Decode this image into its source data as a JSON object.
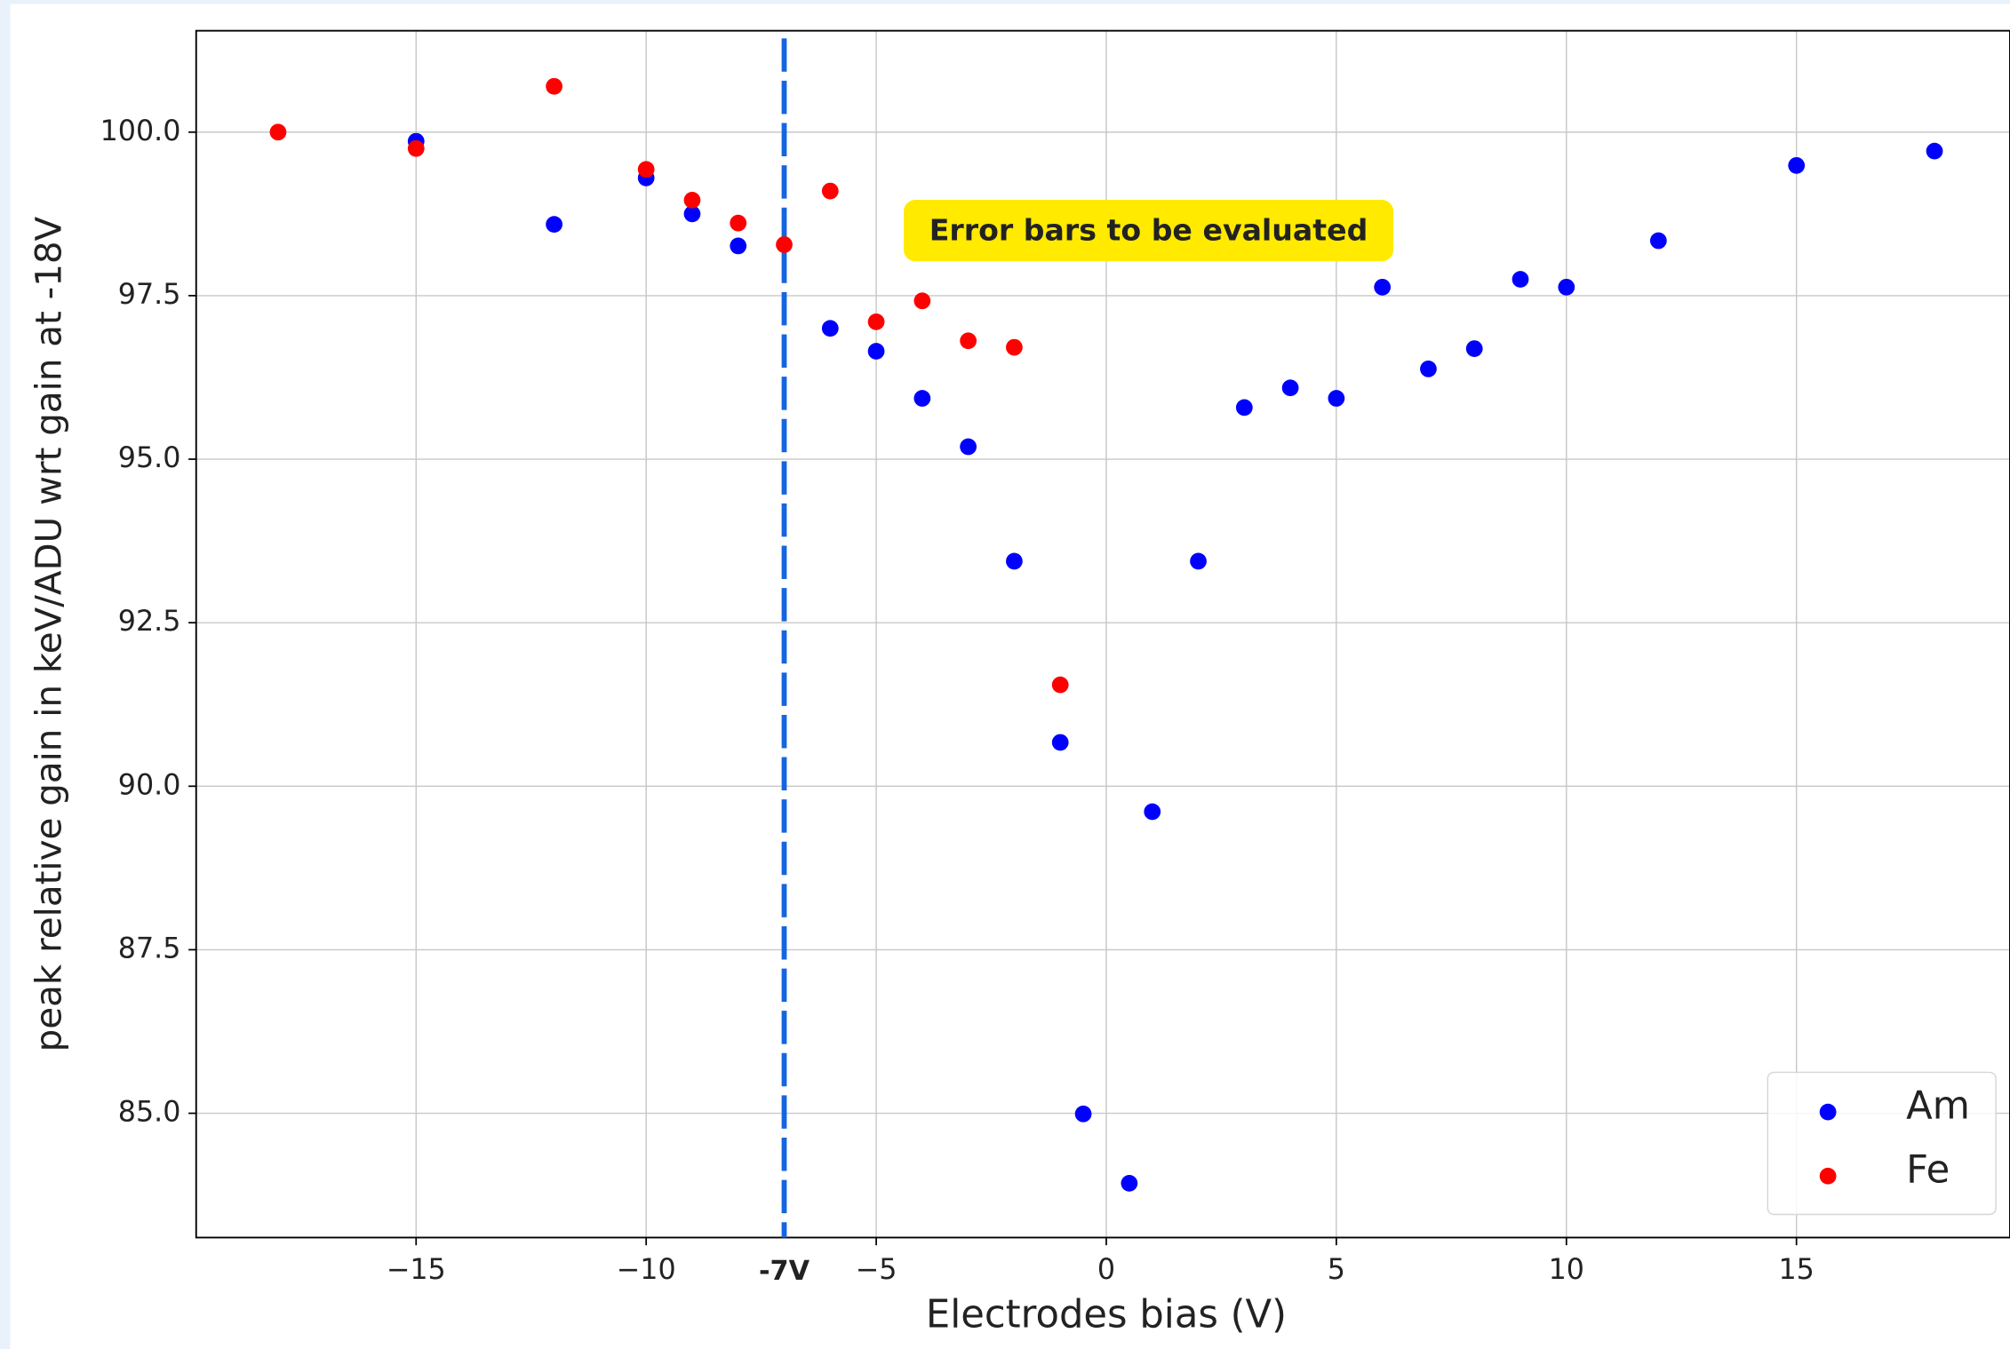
{
  "chart_data": {
    "type": "scatter",
    "x_label": "Electrodes bias (V)",
    "y_label": "peak relative gain in keV/ADU wrt gain at -18V",
    "xlim": [
      -19.78,
      19.64
    ],
    "ylim": [
      83.1,
      101.55
    ],
    "xticks": [
      {
        "value": -15,
        "label": "−15"
      },
      {
        "value": -10,
        "label": "−10"
      },
      {
        "value": -5,
        "label": "−5"
      },
      0,
      5,
      10,
      15
    ],
    "yticks": [
      {
        "value": 85,
        "label": "85.0"
      },
      87.5,
      {
        "value": 90,
        "label": "90.0"
      },
      92.5,
      {
        "value": 95,
        "label": "95.0"
      },
      97.5,
      {
        "value": 100,
        "label": "100.0"
      }
    ],
    "grid": true,
    "legend": "lower right",
    "series": [
      {
        "name": "Am",
        "color": "#0000ff",
        "x": [
          -15,
          -12,
          -10,
          -9,
          -8,
          -6,
          -5,
          -4,
          -3,
          -2,
          -1,
          -0.5,
          0.5,
          1,
          2,
          3,
          4,
          5,
          6,
          7,
          8,
          9,
          10,
          12,
          15,
          18
        ],
        "values": [
          99.86,
          98.59,
          99.3,
          98.75,
          98.26,
          97.0,
          96.65,
          95.93,
          95.19,
          93.44,
          90.67,
          84.99,
          83.93,
          89.61,
          93.44,
          95.79,
          96.09,
          95.93,
          97.63,
          96.38,
          96.69,
          97.75,
          97.63,
          98.34,
          99.49,
          99.71
        ]
      },
      {
        "name": "Fe",
        "color": "#ff0000",
        "x": [
          -18,
          -15,
          -12,
          -10,
          -9,
          -8,
          -7,
          -6,
          -5,
          -4,
          -3,
          -2,
          -1
        ],
        "values": [
          100.0,
          99.75,
          100.7,
          99.43,
          98.96,
          98.61,
          98.28,
          99.1,
          97.1,
          97.42,
          96.81,
          96.71,
          91.55
        ]
      }
    ],
    "vline": {
      "x": -7,
      "label": "-7V",
      "color": "#1565e0"
    },
    "annotation": "Error bars to be evaluated"
  }
}
